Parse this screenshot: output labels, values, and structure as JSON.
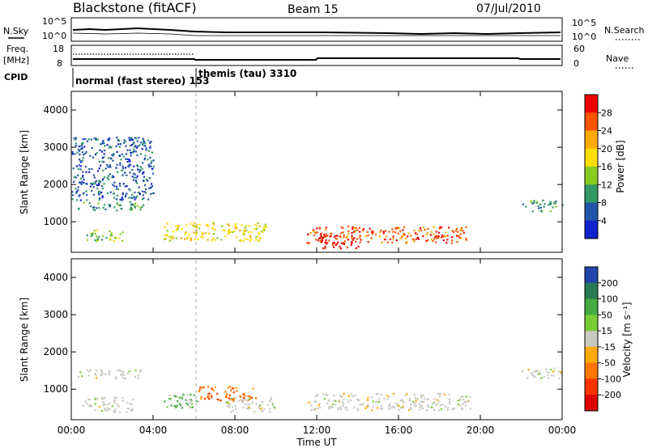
{
  "header": {
    "station": "Blackstone (fitACF)",
    "beam": "Beam 15",
    "date": "07/Jul/2010"
  },
  "panels": {
    "nsky": {
      "left_label": "N.Sky",
      "right_label": "N.Search",
      "left_ticks": [
        "10^5",
        "10^0"
      ],
      "right_ticks": [
        "10^5",
        "10^0"
      ]
    },
    "freq": {
      "left_label_1": "Freq.",
      "left_label_2": "[MHz]",
      "right_label": "Nave",
      "left_ticks": [
        "18",
        "8"
      ],
      "right_ticks": [
        "60",
        "0"
      ]
    },
    "cpid": {
      "label": "CPID",
      "modes": [
        "normal (fast stereo) 153",
        "themis (tau) 3310"
      ]
    }
  },
  "colorbars": {
    "power": {
      "label": "Power [dB]",
      "ticks": [
        "28",
        "24",
        "20",
        "16",
        "12",
        "8",
        "4"
      ],
      "colors": [
        "#ee0000",
        "#ff5500",
        "#ffaa00",
        "#ffdd00",
        "#88cc22",
        "#339966",
        "#2255aa",
        "#1122cc"
      ]
    },
    "velocity": {
      "label": "Velocity [m s⁻¹]",
      "ticks": [
        "200",
        "100",
        "50",
        "15",
        "-15",
        "-50",
        "-100",
        "-200"
      ],
      "colors": [
        "#2244aa",
        "#2a7a55",
        "#44aa44",
        "#77cc33",
        "#c8c8c0",
        "#ffaa00",
        "#ff7700",
        "#ff3300",
        "#dd0000"
      ]
    }
  },
  "chart_data": [
    {
      "type": "heatmap",
      "name": "Power",
      "ylabel": "Slant Range [km]",
      "xlim": [
        "00:00",
        "24:00"
      ],
      "ylim": [
        180,
        4500
      ],
      "yticks": [
        1000,
        2000,
        3000,
        4000
      ],
      "patches": [
        {
          "t": [
            0.3,
            3.5
          ],
          "r": [
            1300,
            1550
          ],
          "level": "8"
        },
        {
          "t": [
            0.5,
            2.5
          ],
          "r": [
            500,
            800
          ],
          "level": "12"
        },
        {
          "t": [
            4.5,
            9.5
          ],
          "r": [
            500,
            1000
          ],
          "level": "16"
        },
        {
          "t": [
            11.5,
            19.5
          ],
          "r": [
            450,
            900
          ],
          "level": "24"
        },
        {
          "t": [
            12.0,
            14.0
          ],
          "r": [
            300,
            650
          ],
          "level": "28"
        },
        {
          "t": [
            22.0,
            24.0
          ],
          "r": [
            1300,
            1600
          ],
          "level": "8"
        },
        {
          "t": [
            0.0,
            4.0
          ],
          "r": [
            1600,
            3300
          ],
          "level": "4"
        }
      ]
    },
    {
      "type": "heatmap",
      "name": "Velocity",
      "ylabel": "Slant Range [km]",
      "xlabel": "Time UT",
      "xticks": [
        "00:00",
        "04:00",
        "08:00",
        "12:00",
        "16:00",
        "20:00",
        "00:00"
      ],
      "ylim": [
        180,
        4500
      ],
      "yticks": [
        1000,
        2000,
        3000,
        4000
      ],
      "patches": [
        {
          "t": [
            0.3,
            3.5
          ],
          "r": [
            1300,
            1550
          ],
          "level": "-15"
        },
        {
          "t": [
            0.5,
            3.0
          ],
          "r": [
            400,
            800
          ],
          "level": "-15"
        },
        {
          "t": [
            4.5,
            6.2
          ],
          "r": [
            500,
            900
          ],
          "level": "50"
        },
        {
          "t": [
            6.2,
            9.0
          ],
          "r": [
            700,
            1100
          ],
          "level": "-50"
        },
        {
          "t": [
            7.5,
            10.0
          ],
          "r": [
            400,
            800
          ],
          "level": "-15"
        },
        {
          "t": [
            11.5,
            19.5
          ],
          "r": [
            450,
            900
          ],
          "level": "-15"
        },
        {
          "t": [
            22.0,
            24.0
          ],
          "r": [
            1300,
            1600
          ],
          "level": "-15"
        }
      ]
    }
  ]
}
